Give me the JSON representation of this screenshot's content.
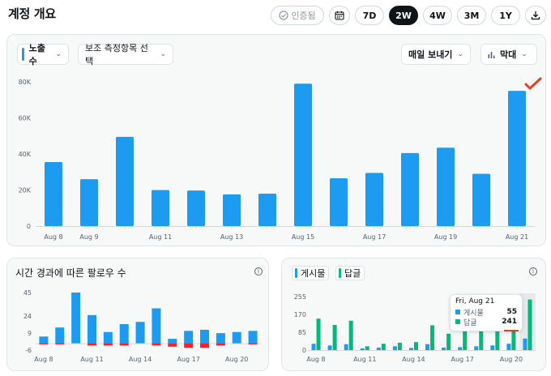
{
  "page": {
    "title": "계정 개요"
  },
  "controls": {
    "verified_label": "인증됨",
    "ranges": [
      "7D",
      "2W",
      "4W",
      "3M",
      "1Y"
    ],
    "active_range": "2W"
  },
  "main_card": {
    "metric_dropdown": "노출수",
    "secondary_dropdown": "보조 측정항목 선택",
    "export_dropdown": "매일 보내기",
    "chart_type_dropdown": "막대"
  },
  "followers_card": {
    "title": "시간 경과에 따른 팔로우 수"
  },
  "posts_card": {
    "legend_posts": "게시물",
    "legend_replies": "답글",
    "tooltip": {
      "date": "Fri, Aug 21",
      "posts_label": "게시물",
      "posts_value": "55",
      "replies_label": "답글",
      "replies_value": "241"
    }
  },
  "colors": {
    "blue": "#1d9bf0",
    "green": "#00ba7c",
    "red": "#f4212e",
    "highlight": "#e0421f"
  },
  "icons": {
    "verified": "check-circle-icon",
    "calendar": "calendar-icon",
    "download": "download-icon",
    "chart": "bar-chart-icon",
    "info": "info-icon",
    "checkmark": "checkmark-annotation-icon"
  },
  "chart_data": [
    {
      "type": "bar",
      "categories": [
        "Aug 8",
        "Aug 9",
        "Aug 10",
        "Aug 11",
        "Aug 12",
        "Aug 13",
        "Aug 14",
        "Aug 15",
        "Aug 16",
        "Aug 17",
        "Aug 18",
        "Aug 19",
        "Aug 20",
        "Aug 21"
      ],
      "tick_labels": [
        "Aug 8",
        "Aug 9",
        "",
        "Aug 11",
        "",
        "Aug 13",
        "",
        "Aug 15",
        "",
        "Aug 17",
        "",
        "Aug 19",
        "",
        "Aug 21"
      ],
      "values": [
        35500,
        26000,
        49500,
        20000,
        19700,
        17600,
        18000,
        79000,
        26500,
        29500,
        40500,
        43500,
        29000,
        75000
      ],
      "yticks": [
        0,
        20000,
        40000,
        60000,
        80000
      ],
      "ytick_labels": [
        "0",
        "20K",
        "40K",
        "60K",
        "80K"
      ],
      "ylim": [
        0,
        80000
      ],
      "color": "#1d9bf0"
    },
    {
      "type": "bar",
      "categories": [
        "Aug 8",
        "Aug 9",
        "Aug 10",
        "Aug 11",
        "Aug 12",
        "Aug 13",
        "Aug 14",
        "Aug 15",
        "Aug 16",
        "Aug 17",
        "Aug 18",
        "Aug 19",
        "Aug 20",
        "Aug 21"
      ],
      "tick_labels": [
        "Aug 8",
        "",
        "",
        "Aug 11",
        "",
        "",
        "Aug 14",
        "",
        "",
        "Aug 17",
        "",
        "",
        "Aug 20",
        ""
      ],
      "series": [
        {
          "values": [
            6,
            14,
            45,
            25,
            10,
            17,
            19,
            31,
            4,
            11,
            12,
            9,
            10,
            11
          ],
          "color": "#1d9bf0"
        },
        {
          "values": [
            -1,
            -1,
            0,
            -2,
            -2,
            -2,
            0,
            -2,
            -3,
            -4,
            -4,
            -2,
            0,
            -1
          ],
          "color": "#f4212e"
        }
      ],
      "yticks": [
        -6,
        9,
        24,
        45
      ],
      "ylim": [
        -6,
        45
      ]
    },
    {
      "type": "bar",
      "categories": [
        "Aug 8",
        "Aug 9",
        "Aug 10",
        "Aug 11",
        "Aug 12",
        "Aug 13",
        "Aug 14",
        "Aug 15",
        "Aug 16",
        "Aug 17",
        "Aug 18",
        "Aug 19",
        "Aug 20",
        "Aug 21"
      ],
      "tick_labels": [
        "Aug 8",
        "",
        "",
        "Aug 11",
        "",
        "",
        "Aug 14",
        "",
        "",
        "Aug 17",
        "",
        "",
        "Aug 20",
        ""
      ],
      "series": [
        {
          "name": "게시물",
          "values": [
            30,
            22,
            28,
            8,
            12,
            18,
            10,
            28,
            12,
            14,
            18,
            22,
            30,
            55
          ],
          "color": "#1d9bf0"
        },
        {
          "name": "답글",
          "values": [
            150,
            120,
            140,
            18,
            30,
            35,
            38,
            118,
            78,
            110,
            98,
            120,
            95,
            241
          ],
          "color": "#00ba7c"
        }
      ],
      "yticks": [
        0,
        85,
        170,
        255
      ],
      "ylim": [
        0,
        255
      ]
    }
  ]
}
